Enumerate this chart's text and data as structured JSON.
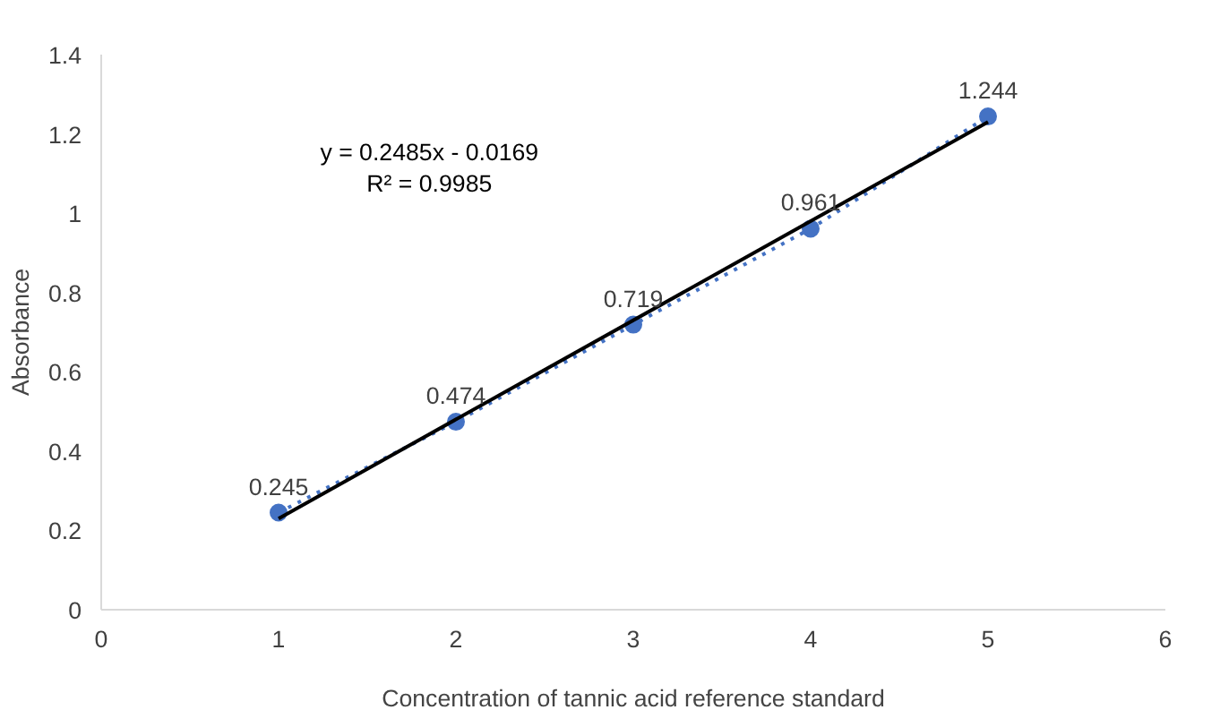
{
  "chart_data": {
    "type": "scatter",
    "xlabel": "Concentration of tannic acid reference standard",
    "ylabel": "Absorbance",
    "x": [
      1,
      2,
      3,
      4,
      5
    ],
    "series": [
      {
        "color": "#4472c4",
        "values": [
          0.245,
          0.474,
          0.719,
          0.961,
          1.244
        ],
        "marker": "circle",
        "line_style": "dotted",
        "value_labels": [
          "0.245",
          "0.474",
          "0.719",
          "0.961",
          "1.244"
        ]
      },
      {
        "type": "line",
        "color": "#000000",
        "x": [
          1,
          5
        ],
        "values": [
          0.23,
          1.23
        ],
        "marker": "none",
        "line_style": "solid"
      }
    ],
    "annotations": [
      "y = 0.2485x - 0.0169",
      "R² = 0.9985"
    ],
    "xlim": [
      0,
      6
    ],
    "xticks": [
      0,
      1,
      2,
      3,
      4,
      5,
      6
    ],
    "ylim": [
      0,
      1.4
    ],
    "yticks": [
      0,
      0.2,
      0.4,
      0.6,
      0.8,
      1,
      1.2,
      1.4
    ],
    "grid": false
  }
}
